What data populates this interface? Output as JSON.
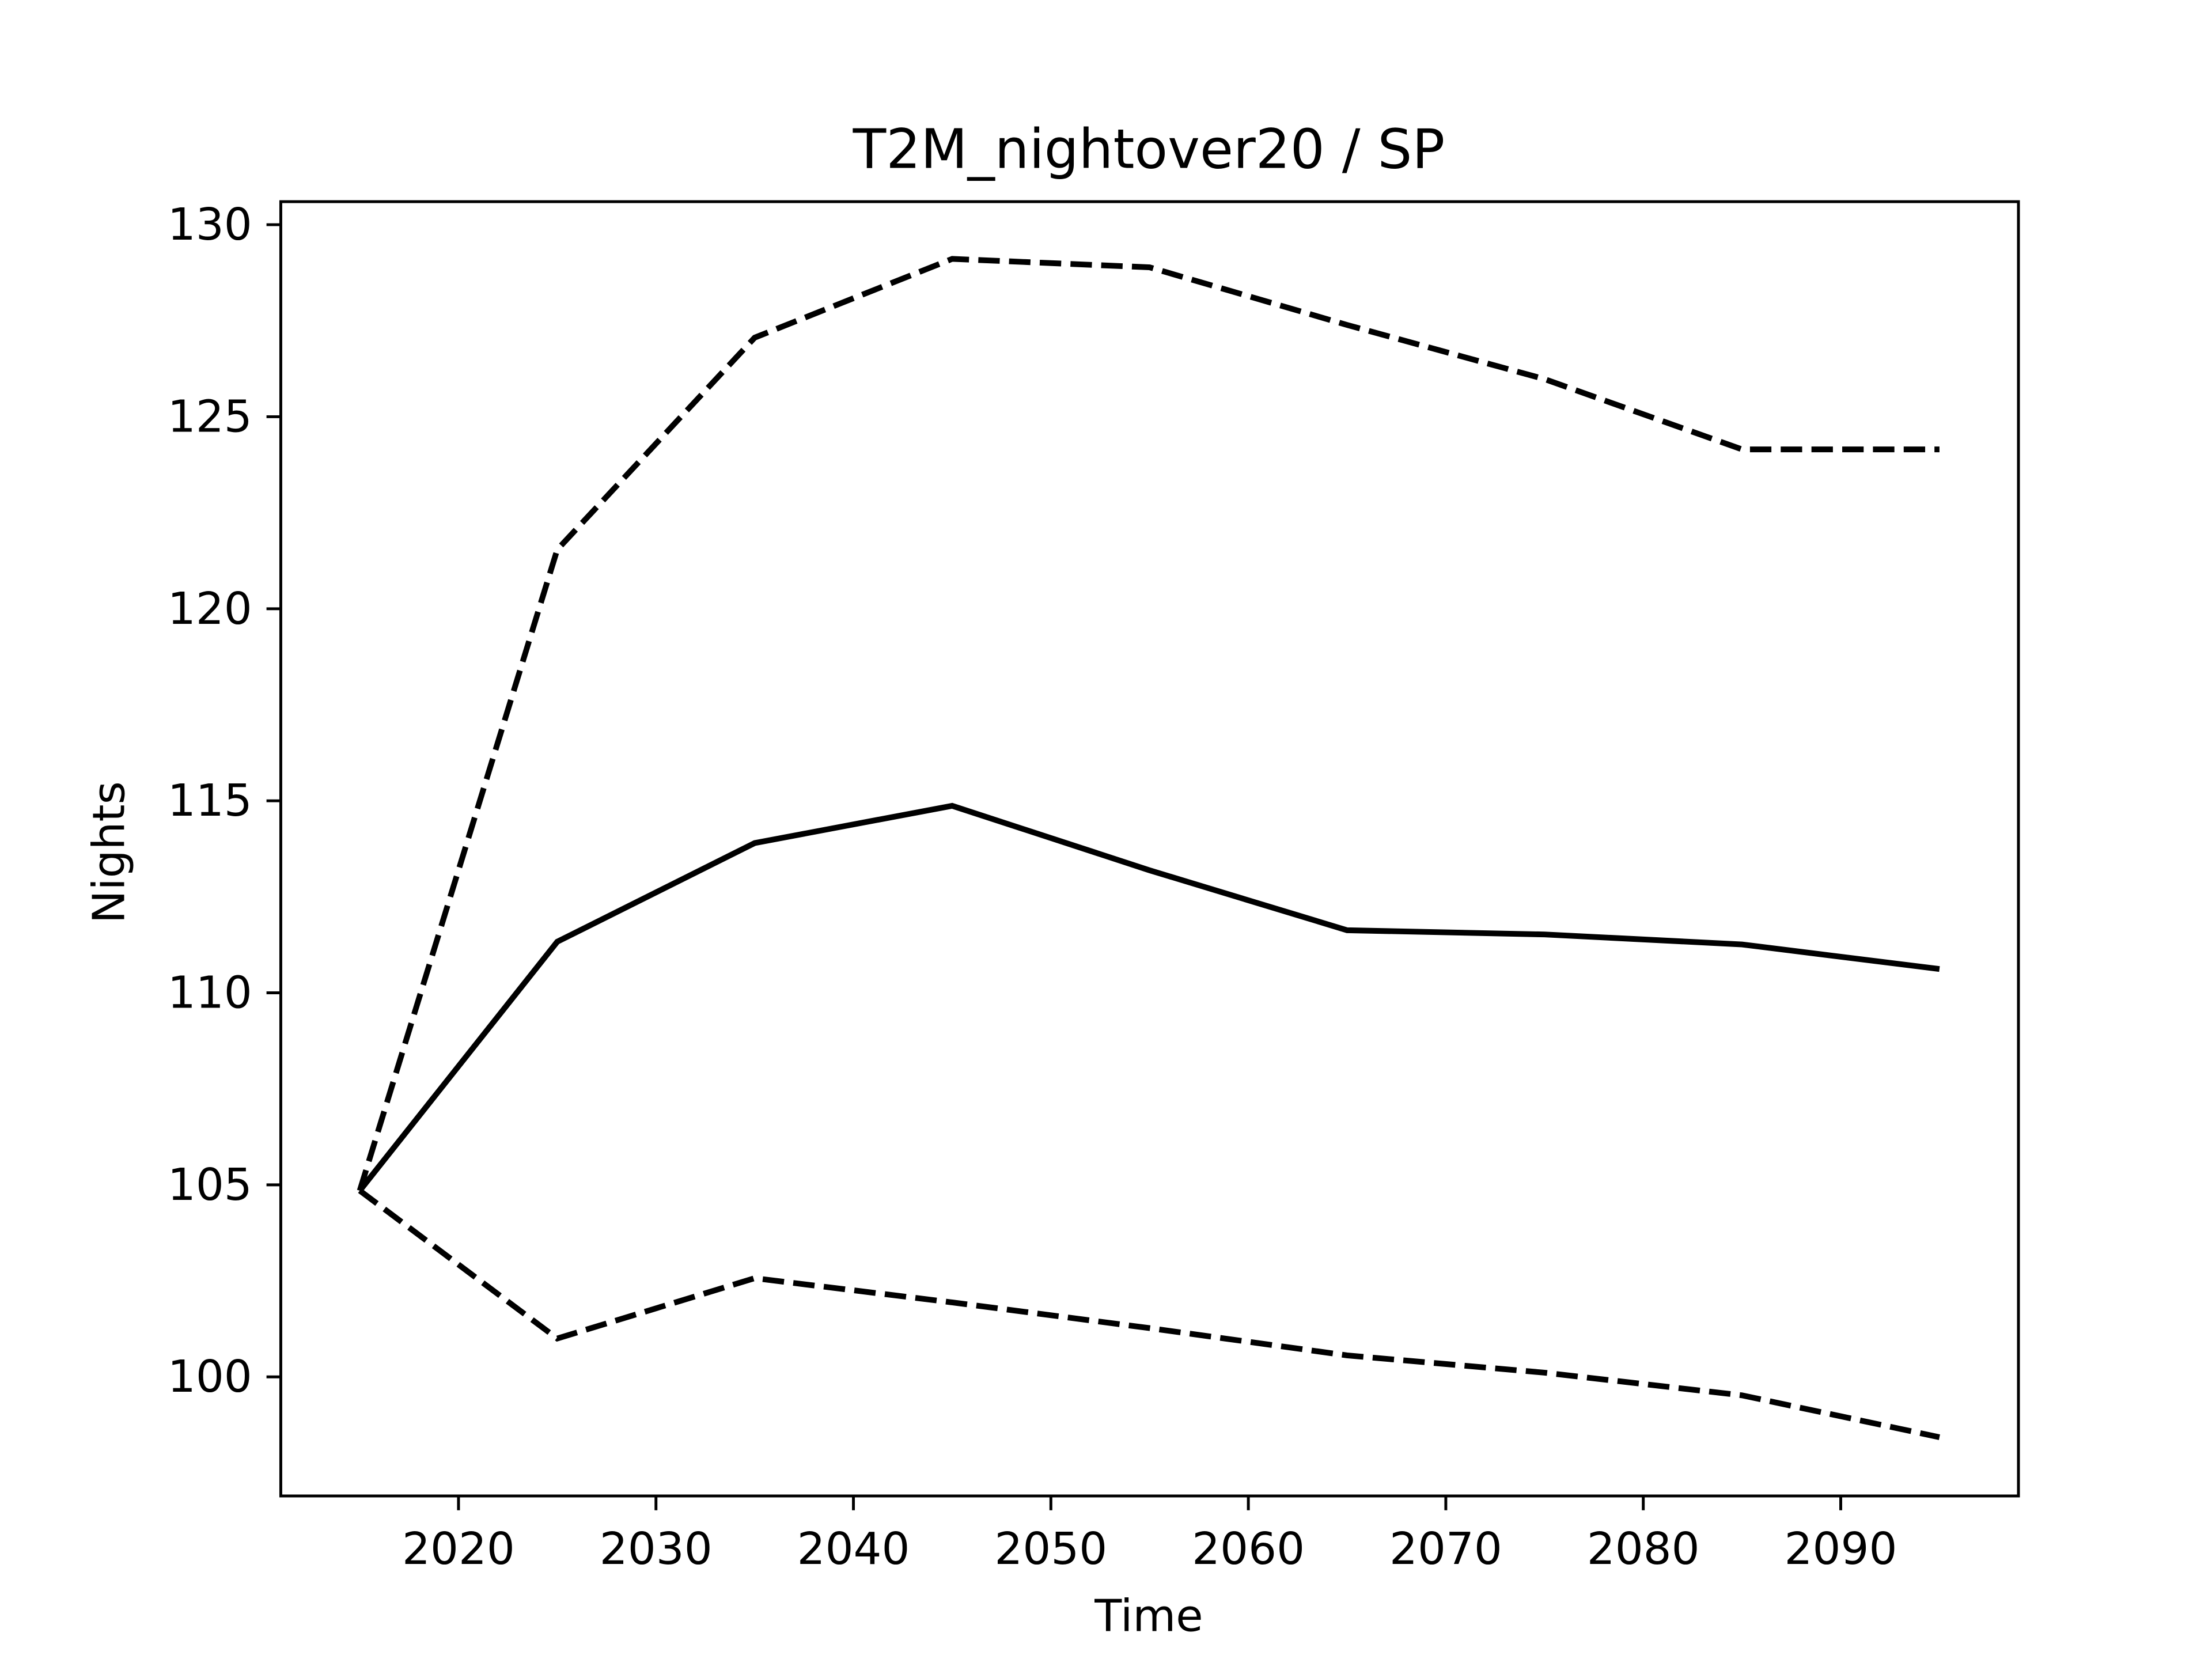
{
  "chart_data": {
    "type": "line",
    "title": "T2M_nightover20 / SP",
    "xlabel": "Time",
    "ylabel": "Nights",
    "x": [
      2015,
      2025,
      2035,
      2045,
      2055,
      2065,
      2075,
      2085,
      2095
    ],
    "series": [
      {
        "color": "#000000",
        "linestyle": "solid",
        "values": [
          104.85,
          111.33,
          113.9,
          114.87,
          113.19,
          111.63,
          111.52,
          111.26,
          110.62
        ]
      },
      {
        "color": "#000000",
        "linestyle": "dashed",
        "values": [
          104.85,
          121.54,
          127.06,
          129.11,
          128.89,
          127.39,
          125.98,
          124.15,
          124.15
        ]
      },
      {
        "color": "#000000",
        "linestyle": "dashed",
        "values": [
          104.85,
          101.0,
          102.57,
          101.94,
          101.27,
          100.56,
          100.11,
          99.52,
          98.43
        ]
      }
    ],
    "xlim": [
      2011,
      2099
    ],
    "xticks": [
      2020,
      2030,
      2040,
      2050,
      2060,
      2070,
      2080,
      2090
    ],
    "ylim": [
      96.9,
      130.6
    ],
    "yticks": [
      100,
      105,
      110,
      115,
      120,
      125,
      130
    ],
    "grid": false
  }
}
